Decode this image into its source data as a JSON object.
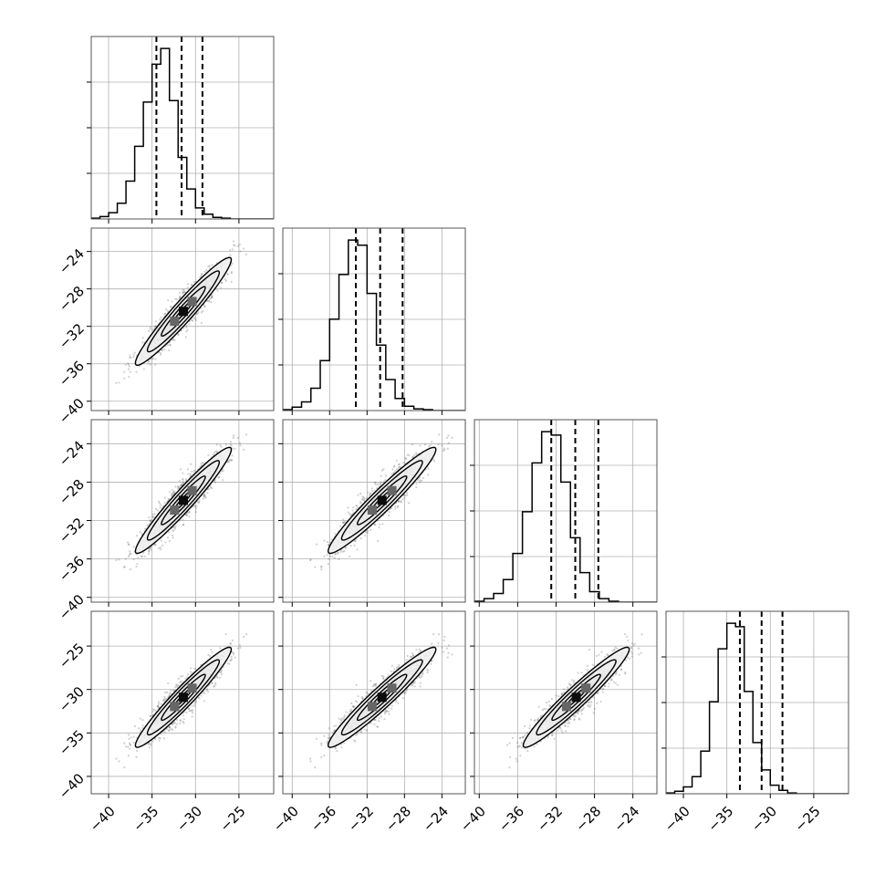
{
  "chart_data": {
    "type": "corner",
    "title": "",
    "dimensions": 4,
    "axes": [
      {
        "range": [
          -42,
          -21
        ],
        "ticks": [
          -40,
          -35,
          -30,
          -25
        ],
        "tick_labels": [
          "−40",
          "−35",
          "−30",
          "−25"
        ],
        "label": ""
      },
      {
        "range": [
          -41,
          -21.5
        ],
        "ticks": [
          -40,
          -36,
          -32,
          -28,
          -24
        ],
        "tick_labels": [
          "−40",
          "−36",
          "−32",
          "−28",
          "−24"
        ],
        "label": ""
      },
      {
        "range": [
          -40.5,
          -21.5
        ],
        "ticks": [
          -40,
          -36,
          -32,
          -28,
          -24
        ],
        "tick_labels": [
          "−40",
          "−36",
          "−32",
          "−28",
          "−24"
        ],
        "label": ""
      },
      {
        "range": [
          -42,
          -21
        ],
        "ticks": [
          -40,
          -35,
          -30,
          -25
        ],
        "tick_labels": [
          "−40",
          "−35",
          "−30",
          "−25"
        ],
        "label": ""
      }
    ],
    "histograms": [
      {
        "bin_edges_start": -42,
        "bin_width": 1,
        "counts": [
          1,
          3,
          8,
          20,
          48,
          92,
          148,
          196,
          216,
          150,
          78,
          38,
          14,
          6,
          2,
          1,
          0,
          0,
          0,
          0,
          0
        ],
        "quantiles": [
          -34.5,
          -31.6,
          -29.2
        ]
      },
      {
        "bin_edges_start": -41,
        "bin_width": 1,
        "counts": [
          1,
          4,
          10,
          26,
          58,
          106,
          158,
          198,
          192,
          136,
          76,
          36,
          14,
          5,
          2,
          1,
          0,
          0,
          0,
          0
        ],
        "quantiles": [
          -33.2,
          -30.6,
          -28.2
        ]
      },
      {
        "bin_edges_start": -40.5,
        "bin_width": 1,
        "counts": [
          1,
          4,
          10,
          26,
          56,
          104,
          160,
          196,
          192,
          138,
          74,
          34,
          12,
          4,
          1,
          0,
          0,
          0,
          0
        ],
        "quantiles": [
          -32.5,
          -30.0,
          -27.6
        ]
      },
      {
        "bin_edges_start": -42,
        "bin_width": 1,
        "counts": [
          1,
          3,
          8,
          20,
          50,
          108,
          170,
          200,
          196,
          120,
          60,
          28,
          10,
          4,
          1,
          0,
          0,
          0,
          0,
          0,
          0
        ],
        "quantiles": [
          -33.5,
          -31.0,
          -28.6
        ]
      }
    ],
    "scatter": {
      "mean": [
        -31.4,
        -30.4,
        -29.9,
        -30.9
      ],
      "sd": [
        2.3,
        2.4,
        2.3,
        2.4
      ],
      "correlation": 0.96,
      "n_points": 1600
    },
    "contour_levels": [
      0.5,
      1.1,
      1.8,
      2.4
    ],
    "colors": {
      "ink": "#000000",
      "grid": "#b0b0b0",
      "points": "#5a5a5a",
      "background": "#ffffff"
    },
    "grid": true,
    "legend": "none"
  }
}
